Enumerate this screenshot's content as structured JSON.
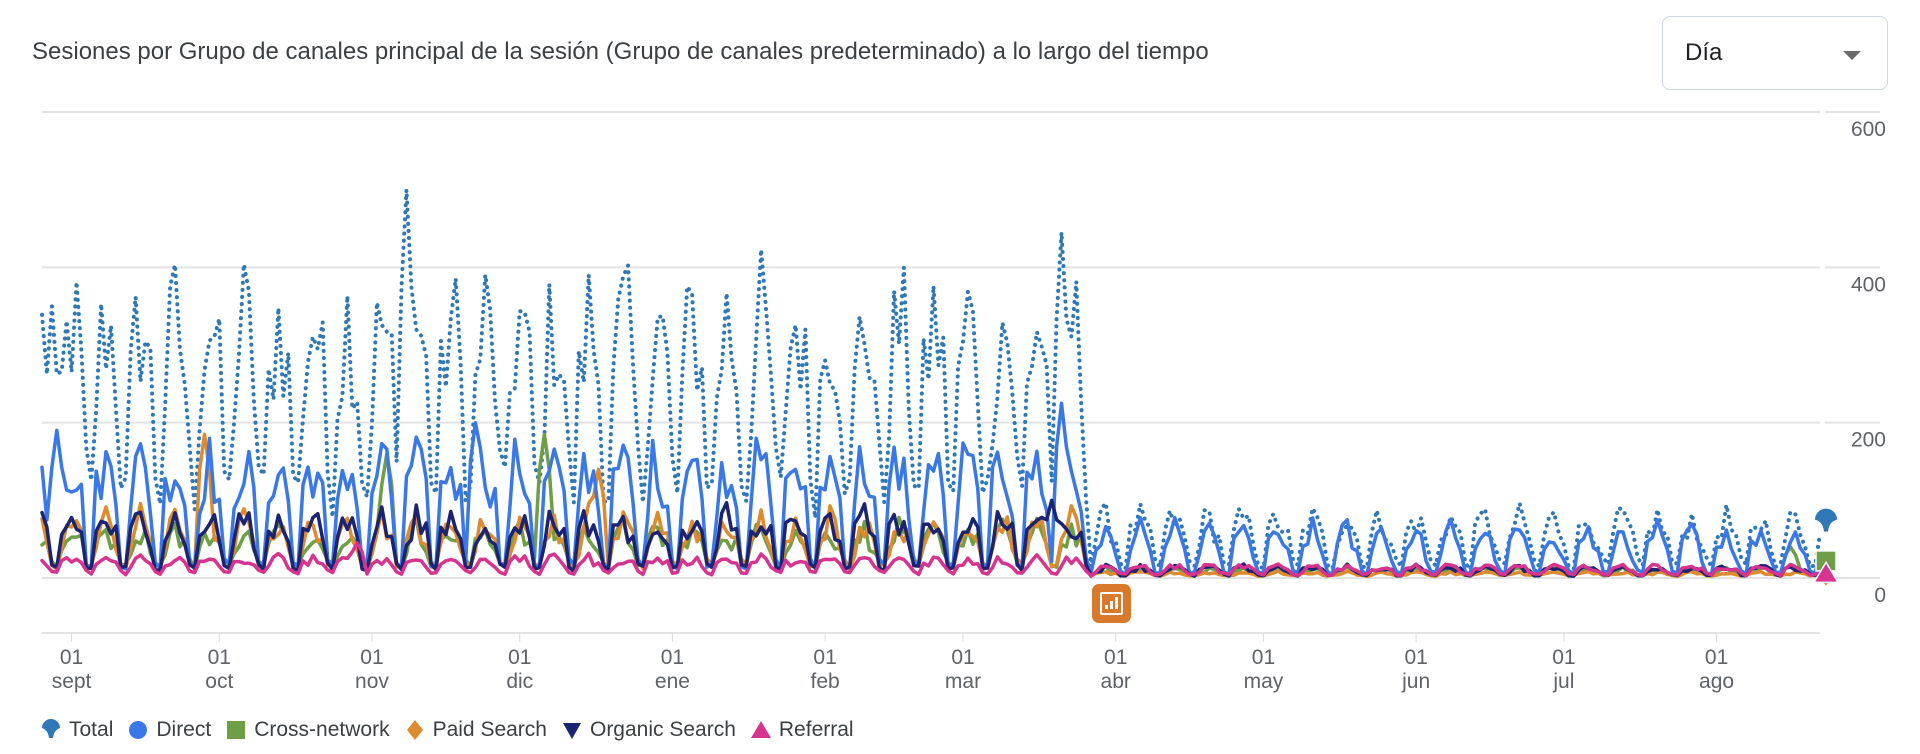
{
  "header": {
    "title": "Sesiones por Grupo de canales principal de la sesión (Grupo de canales predeterminado) a lo largo del tiempo",
    "granularity": {
      "selected": "Día",
      "icon": "chevron-down-icon"
    }
  },
  "annotation": {
    "icon": "insight-chart-icon",
    "color": "#d9792b"
  },
  "chart_data": {
    "type": "line",
    "title": "Sesiones por Grupo de canales principal de la sesión (Grupo de canales predeterminado) a lo largo del tiempo",
    "xlabel": "",
    "ylabel": "",
    "ylim": [
      0,
      600
    ],
    "y_ticks": [
      "0",
      "200",
      "400",
      "600"
    ],
    "y_axis_position": "right",
    "grid": true,
    "legend_position": "bottom-left",
    "x_start_day_before_first_tick": 6,
    "x_days": 362,
    "x_ticks": [
      {
        "day": "01",
        "month": "sept",
        "offset": 6
      },
      {
        "day": "01",
        "month": "oct",
        "offset": 36
      },
      {
        "day": "01",
        "month": "nov",
        "offset": 67
      },
      {
        "day": "01",
        "month": "dic",
        "offset": 97
      },
      {
        "day": "01",
        "month": "ene",
        "offset": 128
      },
      {
        "day": "01",
        "month": "feb",
        "offset": 159
      },
      {
        "day": "01",
        "month": "mar",
        "offset": 187
      },
      {
        "day": "01",
        "month": "abr",
        "offset": 218
      },
      {
        "day": "01",
        "month": "may",
        "offset": 248
      },
      {
        "day": "01",
        "month": "jun",
        "offset": 279
      },
      {
        "day": "01",
        "month": "jul",
        "offset": 309
      },
      {
        "day": "01",
        "month": "ago",
        "offset": 340
      }
    ],
    "series": [
      {
        "name": "Total",
        "color": "#2f78b5",
        "style": "dotted",
        "marker": "pin",
        "weekly_pattern": true,
        "phases": [
          {
            "from": 0,
            "to": 213,
            "weekday": [
              240,
              300,
              330,
              310,
              260,
              140,
              110
            ]
          },
          {
            "from": 213,
            "to": 362,
            "weekday": [
              55,
              70,
              75,
              65,
              50,
              20,
              15
            ]
          }
        ],
        "peaks": [
          {
            "offset": 2,
            "value": 350
          },
          {
            "offset": 74,
            "value": 500
          },
          {
            "offset": 207,
            "value": 445
          }
        ]
      },
      {
        "name": "Direct",
        "color": "#3b78e7",
        "style": "solid",
        "marker": "circle",
        "phases": [
          {
            "from": 0,
            "to": 213,
            "weekday": [
              110,
              140,
              145,
              130,
              100,
              20,
              15
            ]
          },
          {
            "from": 213,
            "to": 362,
            "weekday": [
              40,
              55,
              60,
              45,
              30,
              8,
              6
            ]
          }
        ],
        "peaks": [
          {
            "offset": 3,
            "value": 190
          },
          {
            "offset": 88,
            "value": 200
          },
          {
            "offset": 207,
            "value": 225
          }
        ]
      },
      {
        "name": "Cross-network",
        "color": "#6e9e45",
        "style": "solid",
        "marker": "square",
        "phases": [
          {
            "from": 0,
            "to": 213,
            "weekday": [
              40,
              55,
              60,
              50,
              45,
              20,
              15
            ]
          },
          {
            "from": 213,
            "to": 362,
            "weekday": [
              8,
              10,
              12,
              10,
              8,
              4,
              4
            ]
          }
        ],
        "peaks": [
          {
            "offset": 70,
            "value": 160
          },
          {
            "offset": 102,
            "value": 185
          },
          {
            "offset": 355,
            "value": 40
          }
        ]
      },
      {
        "name": "Paid Search",
        "color": "#de8a2e",
        "style": "solid",
        "marker": "diamond",
        "phases": [
          {
            "from": 0,
            "to": 213,
            "weekday": [
              40,
              60,
              75,
              65,
              50,
              20,
              15
            ]
          },
          {
            "from": 213,
            "to": 362,
            "weekday": [
              5,
              6,
              7,
              6,
              5,
              3,
              3
            ]
          }
        ],
        "peaks": [
          {
            "offset": 33,
            "value": 185
          },
          {
            "offset": 113,
            "value": 140
          }
        ]
      },
      {
        "name": "Organic Search",
        "color": "#1c2370",
        "style": "solid",
        "marker": "triangle-down",
        "phases": [
          {
            "from": 0,
            "to": 213,
            "weekday": [
              55,
              70,
              75,
              65,
              55,
              15,
              12
            ]
          },
          {
            "from": 213,
            "to": 362,
            "weekday": [
              10,
              12,
              14,
              12,
              10,
              4,
              3
            ]
          }
        ],
        "peaks": [
          {
            "offset": 205,
            "value": 100
          }
        ]
      },
      {
        "name": "Referral",
        "color": "#d6348f",
        "style": "solid",
        "marker": "triangle-up",
        "phases": [
          {
            "from": 0,
            "to": 213,
            "weekday": [
              18,
              22,
              25,
              22,
              18,
              8,
              6
            ]
          },
          {
            "from": 213,
            "to": 362,
            "weekday": [
              10,
              14,
              16,
              14,
              10,
              5,
              4
            ]
          }
        ],
        "peaks": [
          {
            "offset": 64,
            "value": 45
          }
        ]
      }
    ]
  },
  "legend": [
    {
      "label": "Total"
    },
    {
      "label": "Direct"
    },
    {
      "label": "Cross-network"
    },
    {
      "label": "Paid Search"
    },
    {
      "label": "Organic Search"
    },
    {
      "label": "Referral"
    }
  ]
}
